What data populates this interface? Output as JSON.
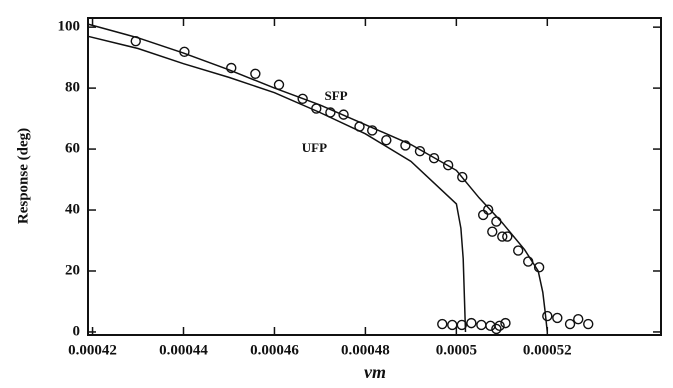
{
  "chart_data": {
    "type": "scatter",
    "xlabel": "νm",
    "ylabel": "Response (deg)",
    "xlim": [
      0.000419,
      0.000545
    ],
    "ylim": [
      -1,
      103
    ],
    "xticks": [
      0.00042,
      0.00044,
      0.00046,
      0.00048,
      0.0005,
      0.00052
    ],
    "yticks": [
      0,
      20,
      40,
      60,
      80,
      100
    ],
    "color": "#111111",
    "points": {
      "x": [
        0.0004295,
        0.0004402,
        0.0004505,
        0.0004558,
        0.000461,
        0.0004662,
        0.0004692,
        0.0004723,
        0.0004752,
        0.0004787,
        0.0004815,
        0.0004846,
        0.0004888,
        0.000492,
        0.0004951,
        0.0004982,
        0.0005013,
        0.0005059,
        0.000507,
        0.0005079,
        0.0005088,
        0.0005101,
        0.0005112,
        0.0005136,
        0.0005158,
        0.0005182,
        0.00052,
        0.0005222,
        0.000525,
        0.0005268,
        0.000529,
        0.0004969,
        0.0004991,
        0.0005012,
        0.0005033,
        0.0005055,
        0.0005075,
        0.0005088,
        0.0005095,
        0.0005108
      ],
      "y": [
        95.4,
        91.9,
        86.6,
        84.7,
        81.1,
        76.5,
        73.3,
        72.0,
        71.3,
        67.4,
        66.1,
        62.9,
        61.2,
        59.3,
        57.0,
        54.7,
        50.8,
        38.4,
        40.1,
        32.9,
        36.2,
        31.3,
        31.3,
        26.7,
        23.1,
        21.2,
        5.2,
        4.6,
        2.6,
        4.2,
        2.6,
        2.6,
        2.3,
        2.3,
        2.9,
        2.3,
        2.0,
        1.0,
        2.0,
        2.9
      ]
    },
    "curves": [
      {
        "name": "SFP",
        "x": [
          0.000419,
          0.00043,
          0.00044,
          0.00045,
          0.00046,
          0.00047,
          0.00048,
          0.00049,
          0.0005,
          0.000505,
          0.00051,
          0.000515,
          0.000518,
          0.000519,
          0.0005195,
          0.00052
        ],
        "y": [
          101,
          96.5,
          91.5,
          86,
          80,
          74.5,
          68,
          61.5,
          53,
          44,
          36,
          27,
          20,
          13,
          7,
          0
        ]
      },
      {
        "name": "UFP",
        "x": [
          0.000419,
          0.00043,
          0.00044,
          0.00045,
          0.00046,
          0.00047,
          0.00048,
          0.00049,
          0.0005,
          0.000501,
          0.0005015,
          0.000502
        ],
        "y": [
          97,
          93,
          88,
          83.5,
          78.5,
          72,
          65,
          56,
          42,
          34,
          24,
          0
        ]
      }
    ]
  }
}
